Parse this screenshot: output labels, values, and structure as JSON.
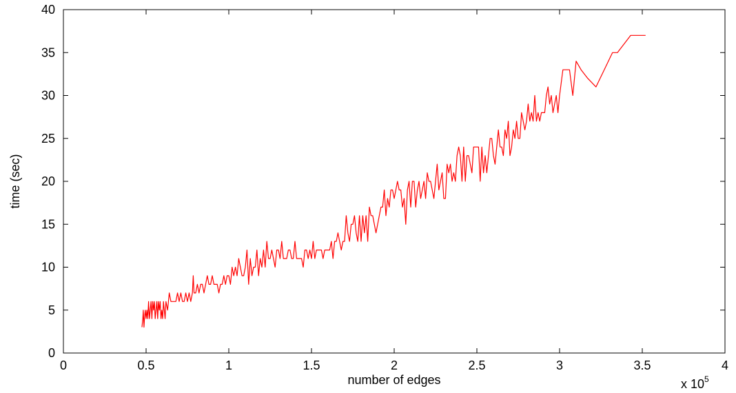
{
  "chart_data": {
    "type": "line",
    "title": "",
    "xlabel": "number of edges",
    "ylabel": "time (sec)",
    "x_multiplier_label": "x 10",
    "x_multiplier_exponent": "5",
    "xlim": [
      0,
      400000
    ],
    "ylim": [
      0,
      40
    ],
    "x_ticks": [
      0,
      50000,
      100000,
      150000,
      200000,
      250000,
      300000,
      350000,
      400000
    ],
    "x_tick_labels": [
      "0",
      "0.5",
      "1",
      "1.5",
      "2",
      "2.5",
      "3",
      "3.5",
      "4"
    ],
    "y_ticks": [
      0,
      5,
      10,
      15,
      20,
      25,
      30,
      35,
      40
    ],
    "y_tick_labels": [
      "0",
      "5",
      "10",
      "15",
      "20",
      "25",
      "30",
      "35",
      "40"
    ],
    "grid": false,
    "line_color": "#ff0000",
    "series": [
      {
        "x": [
          47500,
          48000,
          48300,
          48700,
          49000,
          49500,
          50000,
          50500,
          51000,
          51500,
          52000,
          52500,
          53000,
          53500,
          54000,
          54500,
          55000,
          55500,
          56000,
          56500,
          57000,
          57500,
          58000,
          58500,
          59000,
          59500,
          60000,
          60500,
          61000,
          61500,
          62000,
          63000,
          64000,
          65000,
          66000,
          67000,
          68000,
          69000,
          70000,
          71000,
          72000,
          73000,
          74000,
          75000,
          76000,
          77000,
          78000,
          78500,
          79000,
          80000,
          81000,
          82000,
          83000,
          84000,
          85000,
          86000,
          87000,
          88000,
          89000,
          90000,
          91000,
          92000,
          93000,
          94000,
          95000,
          96000,
          97000,
          98000,
          99000,
          100000,
          101000,
          102000,
          103000,
          104000,
          105000,
          106000,
          107000,
          108000,
          109000,
          110000,
          111000,
          112000,
          113000,
          114000,
          115000,
          116000,
          117000,
          118000,
          119000,
          120000,
          121000,
          122000,
          123000,
          124000,
          125000,
          126000,
          127000,
          128000,
          129000,
          130000,
          131000,
          132000,
          133000,
          134000,
          135000,
          136000,
          137000,
          138000,
          139000,
          140000,
          141000,
          142000,
          143000,
          144000,
          145000,
          146000,
          147000,
          148000,
          149000,
          150000,
          151000,
          152000,
          153000,
          154000,
          155000,
          156000,
          157000,
          158000,
          159000,
          160000,
          161000,
          162000,
          163000,
          164000,
          165000,
          166000,
          167000,
          168000,
          169000,
          170000,
          171000,
          172000,
          173000,
          174000,
          175000,
          176000,
          177000,
          178000,
          179000,
          180000,
          181000,
          182000,
          183000,
          184000,
          185000,
          186000,
          187000,
          188000,
          189000,
          190000,
          191000,
          192000,
          193000,
          194000,
          195000,
          196000,
          197000,
          198000,
          199000,
          200000,
          201000,
          202000,
          203000,
          204000,
          205000,
          206000,
          207000,
          208000,
          209000,
          210000,
          211000,
          212000,
          213000,
          214000,
          215000,
          216000,
          217000,
          218000,
          219000,
          220000,
          221000,
          222000,
          223000,
          224000,
          225000,
          226000,
          227000,
          228000,
          229000,
          230000,
          231000,
          232000,
          233000,
          234000,
          235000,
          236000,
          237000,
          238000,
          239000,
          240000,
          241000,
          242000,
          243000,
          244000,
          245000,
          246000,
          247000,
          248000,
          249000,
          250000,
          251000,
          252000,
          253000,
          254000,
          255000,
          256000,
          257000,
          258000,
          259000,
          260000,
          261000,
          262000,
          263000,
          264000,
          265000,
          266000,
          267000,
          268000,
          269000,
          270000,
          271000,
          272000,
          273000,
          274000,
          275000,
          276000,
          277000,
          278000,
          279000,
          280000,
          281000,
          282000,
          283000,
          284000,
          285000,
          286000,
          287000,
          288000,
          289000,
          290000,
          291000,
          292000,
          293000,
          294000,
          295000,
          296000,
          297000,
          298000,
          299000,
          300000,
          302000,
          304000,
          306000,
          308000,
          310000,
          313000,
          317000,
          322000,
          327000,
          332000,
          335000,
          339000,
          343000,
          347000,
          352000
        ],
        "y": [
          3,
          4,
          5,
          3,
          4,
          5,
          4,
          5,
          4,
          6,
          4,
          5,
          6,
          4,
          6,
          5,
          6,
          4,
          5,
          6,
          4,
          6,
          5,
          6,
          4,
          5,
          4,
          6,
          5,
          4,
          6,
          5,
          7,
          6,
          6,
          6,
          6,
          7,
          6,
          7,
          6,
          6,
          7,
          6,
          7,
          6,
          7,
          9,
          7,
          7,
          8,
          7,
          8,
          8,
          7,
          8,
          9,
          8,
          8,
          9,
          8,
          8,
          8,
          7,
          8,
          8,
          9,
          8,
          9,
          9,
          8,
          10,
          9,
          10,
          9,
          11,
          10,
          9,
          9,
          10,
          12,
          8,
          11,
          9,
          10,
          10,
          12,
          9,
          11,
          10,
          12,
          10,
          13,
          11,
          11,
          12,
          11,
          10,
          12,
          12,
          11,
          13,
          11,
          11,
          11,
          12,
          12,
          11,
          11,
          13,
          11,
          11,
          11,
          11,
          10,
          12,
          12,
          11,
          12,
          11,
          13,
          11,
          12,
          12,
          12,
          12,
          11,
          12,
          12,
          12,
          12,
          13,
          11,
          13,
          13,
          14,
          13,
          12,
          13,
          13,
          16,
          14,
          13,
          15,
          15,
          16,
          14,
          13,
          16,
          13,
          16,
          14,
          16,
          13,
          17,
          16,
          16,
          15,
          14,
          15,
          16,
          17,
          17,
          19,
          16,
          18,
          17,
          19,
          19,
          18,
          19,
          20,
          19,
          19,
          17,
          18,
          15,
          19,
          20,
          17,
          20,
          20,
          17,
          19,
          20,
          18,
          19,
          20,
          18,
          21,
          20,
          20,
          19,
          18,
          20,
          22,
          19,
          20,
          21,
          18,
          18,
          22,
          21,
          22,
          20,
          21,
          20,
          23,
          24,
          23,
          20,
          24,
          20,
          23,
          23,
          22,
          21,
          24,
          24,
          24,
          24,
          20,
          24,
          21,
          23,
          21,
          23,
          25,
          25,
          23,
          22,
          24,
          26,
          24,
          24,
          23,
          26,
          25,
          27,
          23,
          24,
          26,
          25,
          27,
          25,
          25,
          28,
          27,
          26,
          27,
          29,
          27,
          28,
          27,
          30,
          27,
          28,
          27,
          28,
          28,
          28,
          30,
          31,
          29,
          30,
          28,
          29,
          30,
          28,
          30,
          33,
          33,
          33,
          30,
          34,
          33,
          32,
          31,
          33,
          35,
          35,
          36,
          37,
          37,
          37
        ]
      }
    ]
  }
}
